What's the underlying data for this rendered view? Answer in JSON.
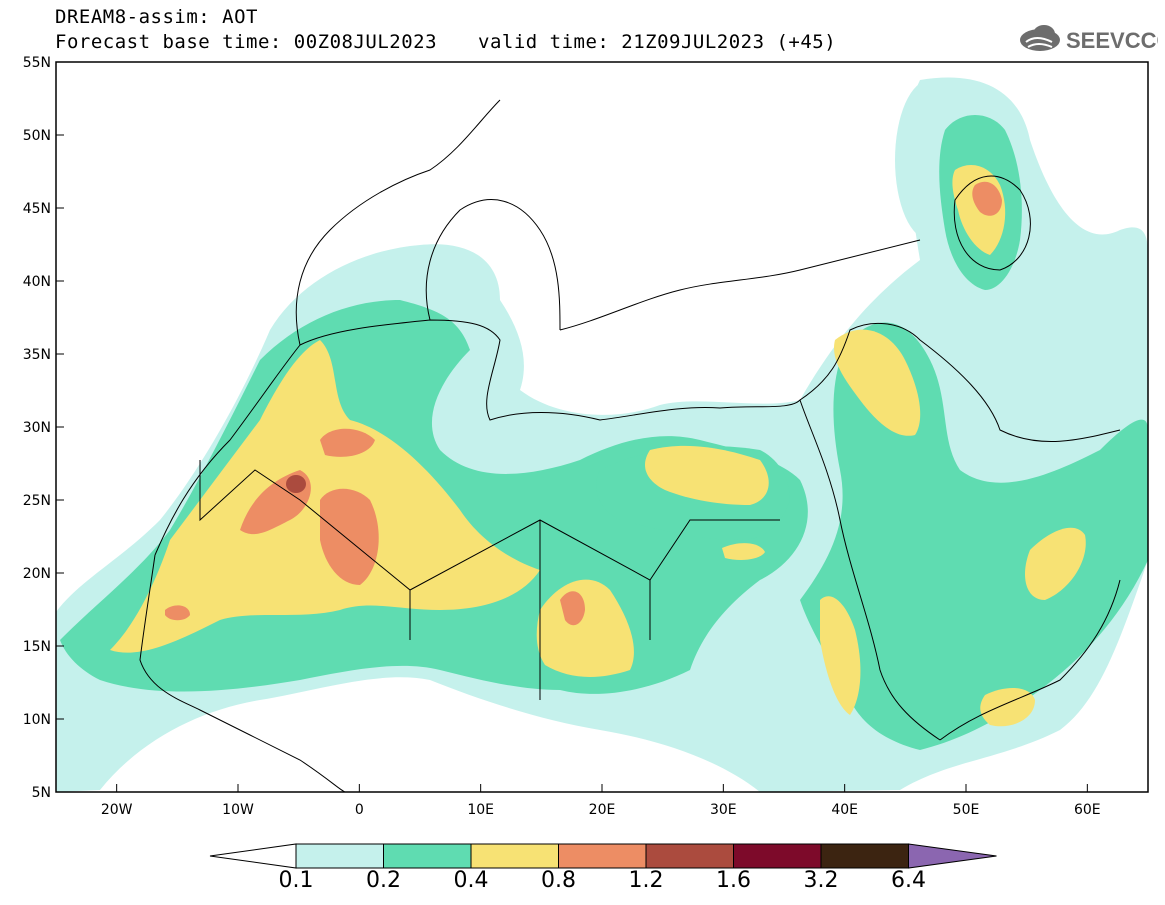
{
  "title": {
    "line1": "DREAM8-assim: AOT",
    "line2": "Forecast base time: 00Z08JUL2023",
    "valid": "valid time: 21Z09JUL2023 (+45)"
  },
  "logo_text": "SEEVCCC",
  "map": {
    "lon_range": [
      -25,
      65
    ],
    "lat_range": [
      5,
      55
    ],
    "lat_labels": [
      "55N",
      "50N",
      "45N",
      "40N",
      "35N",
      "30N",
      "25N",
      "20N",
      "15N",
      "10N",
      "5N"
    ],
    "lon_labels": [
      "20W",
      "10W",
      "0",
      "10E",
      "20E",
      "30E",
      "40E",
      "50E",
      "60E"
    ]
  },
  "colorbar": {
    "labels": [
      "0.1",
      "0.2",
      "0.4",
      "0.8",
      "1.2",
      "1.6",
      "3.2",
      "6.4"
    ],
    "colors": [
      "#c5f1ec",
      "#5fdcb1",
      "#f7e274",
      "#ed8d64",
      "#ab4b3e",
      "#7d0a2a",
      "#3c2411",
      "#8b66b0"
    ]
  }
}
